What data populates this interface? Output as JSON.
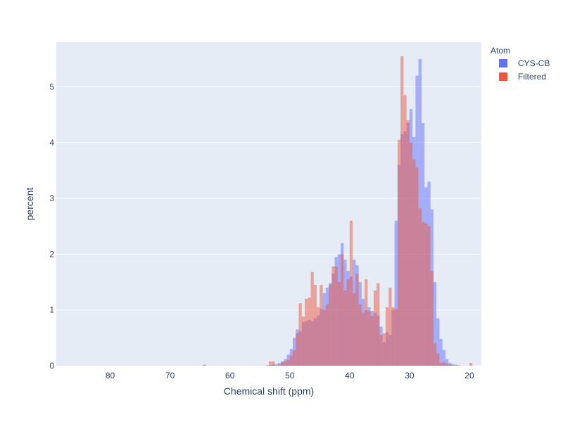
{
  "chart_data": {
    "type": "bar",
    "title": "",
    "xlabel": "Chemical shift (ppm)",
    "ylabel": "percent",
    "xlim": [
      89,
      18
    ],
    "ylim": [
      0,
      5.8
    ],
    "x_reversed": true,
    "bin_width": 0.5,
    "grid": true,
    "legend_placement": "top-right",
    "x_ticks": [
      80,
      70,
      60,
      50,
      40,
      30,
      20
    ],
    "y_ticks": [
      0,
      1,
      2,
      3,
      4,
      5
    ],
    "legend": {
      "title": "Atom",
      "items": [
        "CYS-CB",
        "Filtered"
      ]
    },
    "series": [
      {
        "name": "CYS-CB",
        "color": "#636efa",
        "x": [
          64.25,
          53.75,
          53.25,
          52.75,
          52.25,
          51.75,
          51.25,
          50.75,
          50.25,
          49.75,
          49.25,
          48.75,
          48.25,
          47.75,
          47.25,
          46.75,
          46.25,
          45.75,
          45.25,
          44.75,
          44.25,
          43.75,
          43.25,
          42.75,
          42.25,
          41.75,
          41.25,
          40.75,
          40.25,
          39.75,
          39.25,
          38.75,
          38.25,
          37.75,
          37.25,
          36.75,
          36.25,
          35.75,
          35.25,
          34.75,
          34.25,
          33.75,
          33.25,
          32.75,
          32.25,
          31.75,
          31.25,
          30.75,
          30.25,
          29.75,
          29.25,
          28.75,
          28.25,
          27.75,
          27.25,
          26.75,
          26.25,
          25.75,
          25.25,
          24.75,
          24.25,
          23.75,
          23.25,
          22.75,
          22.25,
          21.75
        ],
        "values": [
          0.02,
          0.01,
          0.01,
          0.02,
          0.03,
          0.05,
          0.08,
          0.12,
          0.2,
          0.3,
          0.5,
          0.65,
          0.62,
          0.78,
          0.8,
          0.82,
          0.8,
          0.85,
          0.9,
          1.02,
          1.3,
          1.4,
          1.48,
          1.65,
          1.95,
          2.0,
          2.2,
          1.9,
          1.7,
          1.6,
          1.9,
          1.8,
          1.5,
          1.2,
          1.0,
          1.05,
          0.98,
          0.95,
          0.9,
          0.7,
          0.42,
          0.6,
          0.55,
          1.0,
          2.6,
          3.6,
          4.15,
          4.2,
          4.35,
          4.6,
          4.1,
          5.2,
          5.5,
          4.35,
          3.2,
          3.3,
          2.8,
          1.5,
          0.85,
          0.48,
          0.28,
          0.12,
          0.05,
          0.03,
          0.02,
          0.01
        ]
      },
      {
        "name": "Filtered",
        "color": "#ef553b",
        "x": [
          53.25,
          52.75,
          51.75,
          51.25,
          50.75,
          50.25,
          49.75,
          49.25,
          48.75,
          48.25,
          47.75,
          47.25,
          46.75,
          46.25,
          45.75,
          45.25,
          44.75,
          44.25,
          43.75,
          43.25,
          42.75,
          42.25,
          41.75,
          41.25,
          40.75,
          40.25,
          39.75,
          39.25,
          38.75,
          38.25,
          37.75,
          37.25,
          36.75,
          36.25,
          35.75,
          35.25,
          34.75,
          34.25,
          33.75,
          33.25,
          32.75,
          32.25,
          31.75,
          31.25,
          30.75,
          30.25,
          29.75,
          29.25,
          28.75,
          28.25,
          27.75,
          27.25,
          26.75,
          26.25,
          25.75,
          25.25,
          24.75,
          24.25,
          23.75,
          23.25,
          19.75
        ],
        "values": [
          0.08,
          0.08,
          0.02,
          0.06,
          0.08,
          0.1,
          0.18,
          0.28,
          0.58,
          1.12,
          0.88,
          1.2,
          1.22,
          1.68,
          1.45,
          1.05,
          1.45,
          1.0,
          1.1,
          1.45,
          1.78,
          1.78,
          1.5,
          2.0,
          1.35,
          1.55,
          2.6,
          1.3,
          1.65,
          1.1,
          0.95,
          1.55,
          0.98,
          0.9,
          1.35,
          1.48,
          0.55,
          0.58,
          1.05,
          1.4,
          1.05,
          1.02,
          4.05,
          5.55,
          4.85,
          4.4,
          4.0,
          3.7,
          3.55,
          2.82,
          2.58,
          2.55,
          2.5,
          1.7,
          0.4,
          0.22,
          0.05,
          0.06,
          0.04,
          0.03,
          0.05
        ]
      }
    ]
  }
}
